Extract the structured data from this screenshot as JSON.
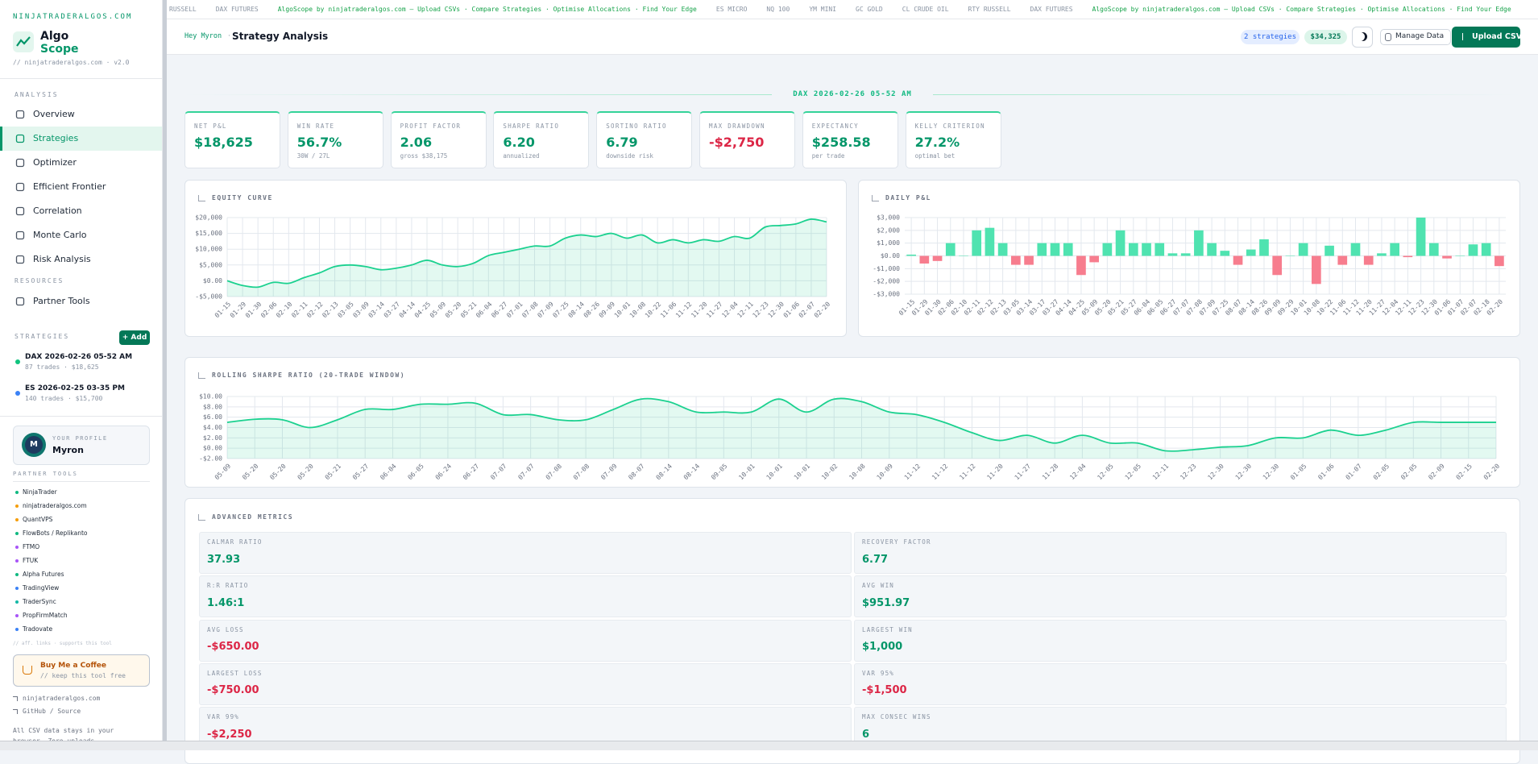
{
  "ticker": [
    {
      "text": "RUSSELL",
      "accent": false
    },
    {
      "text": "DAX FUTURES",
      "accent": false
    },
    {
      "text": "AlgoScope by ninjatraderalgos.com — Upload CSVs · Compare Strategies · Optimise Allocations · Find Your Edge",
      "accent": true
    },
    {
      "text": "ES MICRO",
      "accent": false
    },
    {
      "text": "NQ 100",
      "accent": false
    },
    {
      "text": "YM MINI",
      "accent": false
    },
    {
      "text": "GC GOLD",
      "accent": false
    },
    {
      "text": "CL CRUDE OIL",
      "accent": false
    },
    {
      "text": "RTY RUSSELL",
      "accent": false
    },
    {
      "text": "DAX FUTURES",
      "accent": false
    },
    {
      "text": "AlgoScope by ninjatraderalgos.com — Upload CSVs · Compare Strategies · Optimise Allocations · Find Your Edge",
      "accent": true
    }
  ],
  "sidebar": {
    "brand_url": "NINJATRADERALGOS.COM",
    "brand_line1": "Algo",
    "brand_line2": "Scope",
    "version": "// ninjatraderalgos.com · v2.0",
    "analysis_heading": "ANALYSIS",
    "nav": [
      {
        "label": "Overview",
        "active": false
      },
      {
        "label": "Strategies",
        "active": true
      },
      {
        "label": "Optimizer",
        "active": false
      },
      {
        "label": "Efficient Frontier",
        "active": false
      },
      {
        "label": "Correlation",
        "active": false
      },
      {
        "label": "Monte Carlo",
        "active": false
      },
      {
        "label": "Risk Analysis",
        "active": false
      }
    ],
    "resources_heading": "RESOURCES",
    "resources": [
      "Partner Tools"
    ],
    "strategies_heading": "STRATEGIES",
    "add_button": "+ Add",
    "strategies": [
      {
        "name": "DAX 2026-02-26 05-52 AM",
        "detail": "87 trades · $18,625",
        "color": "#10c47e"
      },
      {
        "name": "ES 2026-02-25 03-35 PM",
        "detail": "140 trades · $15,700",
        "color": "#3b82f6"
      }
    ],
    "profile": {
      "label": "YOUR PROFILE",
      "name": "Myron",
      "initial": "M"
    },
    "partner_heading": "PARTNER TOOLS",
    "partners": [
      {
        "name": "NinjaTrader",
        "color": "#10b981"
      },
      {
        "name": "ninjatraderalgos.com",
        "color": "#f59e0b"
      },
      {
        "name": "QuantVPS",
        "color": "#f59e0b"
      },
      {
        "name": "FlowBots / Replikanto",
        "color": "#10b981"
      },
      {
        "name": "FTMO",
        "color": "#a855f7"
      },
      {
        "name": "FTUK",
        "color": "#a855f7"
      },
      {
        "name": "Alpha Futures",
        "color": "#10b981"
      },
      {
        "name": "TradingView",
        "color": "#3b82f6"
      },
      {
        "name": "TraderSync",
        "color": "#14b8a6"
      },
      {
        "name": "PropFirmMatch",
        "color": "#a855f7"
      },
      {
        "name": "Tradovate",
        "color": "#3b82f6"
      }
    ],
    "aff_note": "// aff. links · supports this tool",
    "coffee_title": "Buy Me a Coffee",
    "coffee_note": "// keep this tool free",
    "links": [
      "ninjatraderalgos.com",
      "GitHub / Source"
    ],
    "privacy_note": "All CSV data stays in your browser. Zero uploads."
  },
  "header": {
    "greeting": "Hey Myron",
    "separator": "·",
    "title": "Strategy Analysis",
    "strategy_count": "2 strategies",
    "total": "$34,325",
    "manage_button": "Manage Data",
    "upload_button": "Upload CSV"
  },
  "strategy_heading": "DAX 2026-02-26 05-52 AM",
  "kpis": [
    {
      "label": "NET P&L",
      "value": "$18,625",
      "sub": null,
      "negative": false
    },
    {
      "label": "WIN RATE",
      "value": "56.7%",
      "sub": "30W / 27L",
      "negative": false
    },
    {
      "label": "PROFIT FACTOR",
      "value": "2.06",
      "sub": "gross $38,175",
      "negative": false
    },
    {
      "label": "SHARPE RATIO",
      "value": "6.20",
      "sub": "annualized",
      "negative": false
    },
    {
      "label": "SORTINO RATIO",
      "value": "6.79",
      "sub": "downside risk",
      "negative": false
    },
    {
      "label": "MAX DRAWDOWN",
      "value": "-$2,750",
      "sub": null,
      "negative": true
    },
    {
      "label": "EXPECTANCY",
      "value": "$258.58",
      "sub": "per trade",
      "negative": false
    },
    {
      "label": "KELLY CRITERION",
      "value": "27.2%",
      "sub": "optimal bet",
      "negative": false
    }
  ],
  "equity_chart": {
    "type": "line",
    "title": "EQUITY CURVE",
    "color": "#1bd18f",
    "categories": [
      "01-15",
      "01-29",
      "01-30",
      "02-06",
      "02-10",
      "02-11",
      "02-12",
      "02-13",
      "03-05",
      "03-09",
      "03-14",
      "03-27",
      "04-14",
      "04-25",
      "05-09",
      "05-20",
      "05-21",
      "06-04",
      "06-27",
      "07-01",
      "07-08",
      "07-09",
      "07-25",
      "08-14",
      "08-26",
      "09-09",
      "10-01",
      "10-08",
      "10-22",
      "11-06",
      "11-12",
      "11-20",
      "11-27",
      "12-04",
      "12-11",
      "12-23",
      "12-30",
      "01-06",
      "02-07",
      "02-20"
    ],
    "values": [
      0,
      -1500,
      -2000,
      -500,
      -800,
      1000,
      2500,
      4500,
      5000,
      4500,
      3500,
      4000,
      5000,
      6500,
      5000,
      4500,
      5500,
      8000,
      9000,
      10000,
      11000,
      11000,
      13500,
      14500,
      14000,
      15000,
      13500,
      14500,
      12000,
      13000,
      12000,
      13000,
      12500,
      14000,
      13500,
      17000,
      17500,
      18000,
      19500,
      18625
    ],
    "ylim": [
      -5000,
      20000
    ],
    "yticks": [
      {
        "value": -5000,
        "label": "-$5,000"
      },
      {
        "value": 0,
        "label": "$0.00"
      },
      {
        "value": 5000,
        "label": "$5,000"
      },
      {
        "value": 10000,
        "label": "$10,000"
      },
      {
        "value": 15000,
        "label": "$15,000"
      },
      {
        "value": 20000,
        "label": "$20,000"
      }
    ],
    "grid": true
  },
  "daily_chart": {
    "type": "bar",
    "title": "DAILY P&L",
    "positive_color": "#4fe3b0",
    "negative_color": "#f77d8e",
    "categories": [
      "01-15",
      "01-29",
      "01-30",
      "02-06",
      "02-10",
      "02-11",
      "02-12",
      "02-13",
      "03-05",
      "03-14",
      "03-17",
      "03-27",
      "04-14",
      "04-25",
      "05-09",
      "05-20",
      "05-21",
      "05-27",
      "06-04",
      "06-05",
      "06-27",
      "07-07",
      "07-08",
      "07-09",
      "07-25",
      "08-07",
      "08-14",
      "08-26",
      "09-09",
      "09-29",
      "10-01",
      "10-08",
      "10-22",
      "11-06",
      "11-12",
      "11-20",
      "11-27",
      "12-04",
      "12-11",
      "12-23",
      "12-30",
      "01-06",
      "01-07",
      "02-07",
      "02-18",
      "02-20"
    ],
    "values": [
      100,
      -600,
      -400,
      1000,
      0,
      2000,
      2200,
      1000,
      -700,
      -700,
      1000,
      1000,
      1000,
      -1500,
      -500,
      1000,
      2000,
      1000,
      1000,
      1000,
      200,
      200,
      2000,
      1000,
      400,
      -700,
      500,
      1300,
      -1500,
      0,
      1000,
      -2200,
      800,
      -700,
      1000,
      -700,
      200,
      1000,
      -100,
      3000,
      1000,
      -200,
      0,
      900,
      1000,
      -800
    ],
    "ylim": [
      -3000,
      3000
    ],
    "yticks": [
      {
        "value": -3000,
        "label": "-$3,000"
      },
      {
        "value": -2000,
        "label": "-$2,000"
      },
      {
        "value": -1000,
        "label": "-$1,000"
      },
      {
        "value": 0,
        "label": "$0.00"
      },
      {
        "value": 1000,
        "label": "$1,000"
      },
      {
        "value": 2000,
        "label": "$2,000"
      },
      {
        "value": 3000,
        "label": "$3,000"
      }
    ],
    "grid": true
  },
  "sharpe_chart": {
    "type": "line",
    "title": "ROLLING SHARPE RATIO (20-TRADE WINDOW)",
    "color": "#1bd18f",
    "categories": [
      "05-09",
      "05-20",
      "05-20",
      "05-20",
      "05-21",
      "05-27",
      "06-04",
      "06-05",
      "06-24",
      "06-27",
      "07-07",
      "07-07",
      "07-08",
      "07-08",
      "07-09",
      "08-07",
      "08-14",
      "08-14",
      "09-05",
      "10-01",
      "10-01",
      "10-01",
      "10-02",
      "10-08",
      "10-09",
      "11-12",
      "11-12",
      "11-12",
      "11-20",
      "11-27",
      "11-28",
      "12-04",
      "12-05",
      "12-05",
      "12-11",
      "12-23",
      "12-30",
      "12-30",
      "12-30",
      "01-05",
      "01-06",
      "01-07",
      "02-05",
      "02-05",
      "02-09",
      "02-15",
      "02-20"
    ],
    "values": [
      5,
      5.6,
      5.5,
      4,
      5.5,
      7.5,
      7.5,
      8.5,
      8.5,
      8.7,
      6.5,
      6.5,
      5.5,
      5.5,
      7.5,
      9.5,
      9,
      7,
      7,
      7,
      9.5,
      7,
      9.5,
      9,
      7,
      6.5,
      5,
      3,
      1.5,
      2.5,
      1,
      2.5,
      1,
      1,
      -0.5,
      -0.3,
      0.2,
      0.5,
      2,
      2,
      3.5,
      2.5,
      3.5,
      5,
      5,
      5,
      5
    ],
    "ylim": [
      -2,
      10
    ],
    "yticks": [
      {
        "value": -2,
        "label": "-$2.00"
      },
      {
        "value": 0,
        "label": "$0.00"
      },
      {
        "value": 2,
        "label": "$2.00"
      },
      {
        "value": 4,
        "label": "$4.00"
      },
      {
        "value": 6,
        "label": "$6.00"
      },
      {
        "value": 8,
        "label": "$8.00"
      },
      {
        "value": 10,
        "label": "$10.00"
      }
    ],
    "grid": true
  },
  "advanced": {
    "title": "ADVANCED METRICS",
    "metrics": [
      {
        "label": "CALMAR RATIO",
        "value": "37.93",
        "negative": false
      },
      {
        "label": "RECOVERY FACTOR",
        "value": "6.77",
        "negative": false
      },
      {
        "label": "R:R RATIO",
        "value": "1.46:1",
        "negative": false
      },
      {
        "label": "AVG WIN",
        "value": "$951.97",
        "negative": false
      },
      {
        "label": "AVG LOSS",
        "value": "-$650.00",
        "negative": true
      },
      {
        "label": "LARGEST WIN",
        "value": "$1,000",
        "negative": false
      },
      {
        "label": "LARGEST LOSS",
        "value": "-$750.00",
        "negative": true
      },
      {
        "label": "VAR 95%",
        "value": "-$1,500",
        "negative": true
      },
      {
        "label": "VAR 99%",
        "value": "-$2,250",
        "negative": true
      },
      {
        "label": "MAX CONSEC WINS",
        "value": "6",
        "negative": false
      }
    ]
  }
}
